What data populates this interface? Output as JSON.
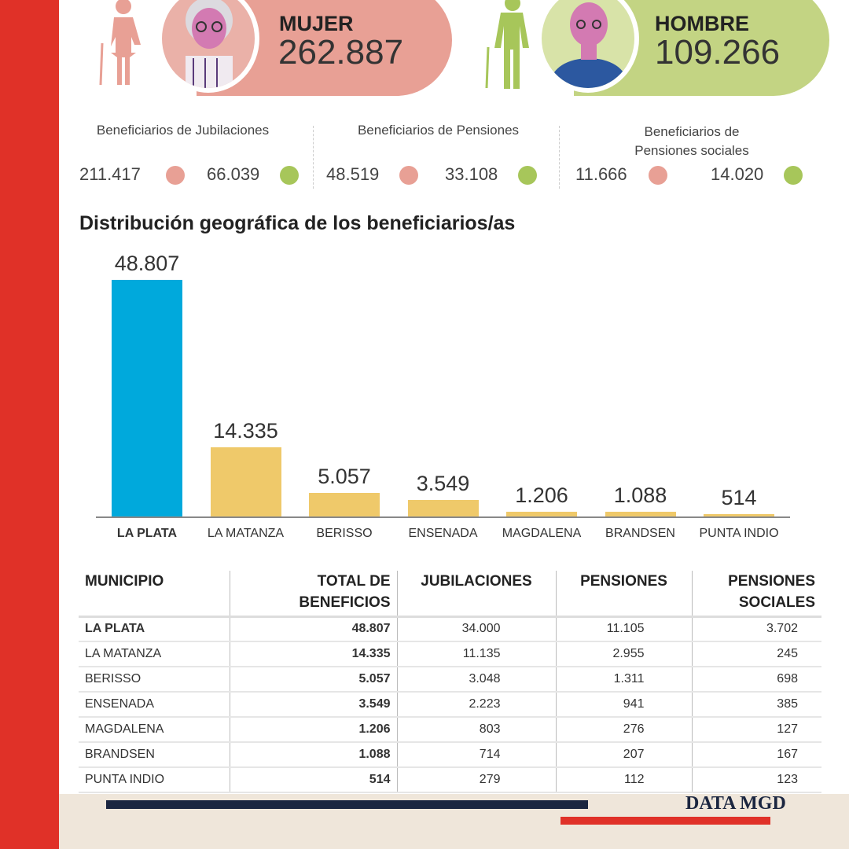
{
  "colors": {
    "female": "#e8a095",
    "male": "#c3d483",
    "highlight_bar": "#00a9dc",
    "bar": "#efc96a",
    "band": "#e03128"
  },
  "female": {
    "label": "MUJER",
    "value": "262.887"
  },
  "male": {
    "label": "HOMBRE",
    "value": "109.266"
  },
  "stats": [
    {
      "title": "Beneficiarios de Jubilaciones",
      "female": "211.417",
      "male": "66.039"
    },
    {
      "title": "Beneficiarios de Pensiones",
      "female": "48.519",
      "male": "33.108"
    },
    {
      "title": "Beneficiarios de Pensiones sociales",
      "female": "11.666",
      "male": "14.020"
    }
  ],
  "chart_data": {
    "type": "bar",
    "title": "Distribución geográfica de los beneficiarios/as",
    "categories": [
      "LA PLATA",
      "LA MATANZA",
      "BERISSO",
      "ENSENADA",
      "MAGDALENA",
      "BRANDSEN",
      "PUNTA INDIO"
    ],
    "values": [
      48807,
      14335,
      5057,
      3549,
      1206,
      1088,
      514
    ],
    "labels": [
      "48.807",
      "14.335",
      "5.057",
      "3.549",
      "1.206",
      "1.088",
      "514"
    ],
    "ylim": [
      0,
      48807
    ],
    "xlabel": "",
    "ylabel": ""
  },
  "table": {
    "headers": [
      "MUNICIPIO",
      "TOTAL DE BENEFICIOS",
      "JUBILACIONES",
      "PENSIONES",
      "PENSIONES SOCIALES"
    ],
    "rows": [
      [
        "LA PLATA",
        "48.807",
        "34.000",
        "11.105",
        "3.702"
      ],
      [
        "LA MATANZA",
        "14.335",
        "11.135",
        "2.955",
        "245"
      ],
      [
        "BERISSO",
        "5.057",
        "3.048",
        "1.311",
        "698"
      ],
      [
        "ENSENADA",
        "3.549",
        "2.223",
        "941",
        "385"
      ],
      [
        "MAGDALENA",
        "1.206",
        "803",
        "276",
        "127"
      ],
      [
        "BRANDSEN",
        "1.088",
        "714",
        "207",
        "167"
      ],
      [
        "PUNTA INDIO",
        "514",
        "279",
        "112",
        "123"
      ]
    ]
  },
  "footer": {
    "brand": "DATA MGD"
  }
}
